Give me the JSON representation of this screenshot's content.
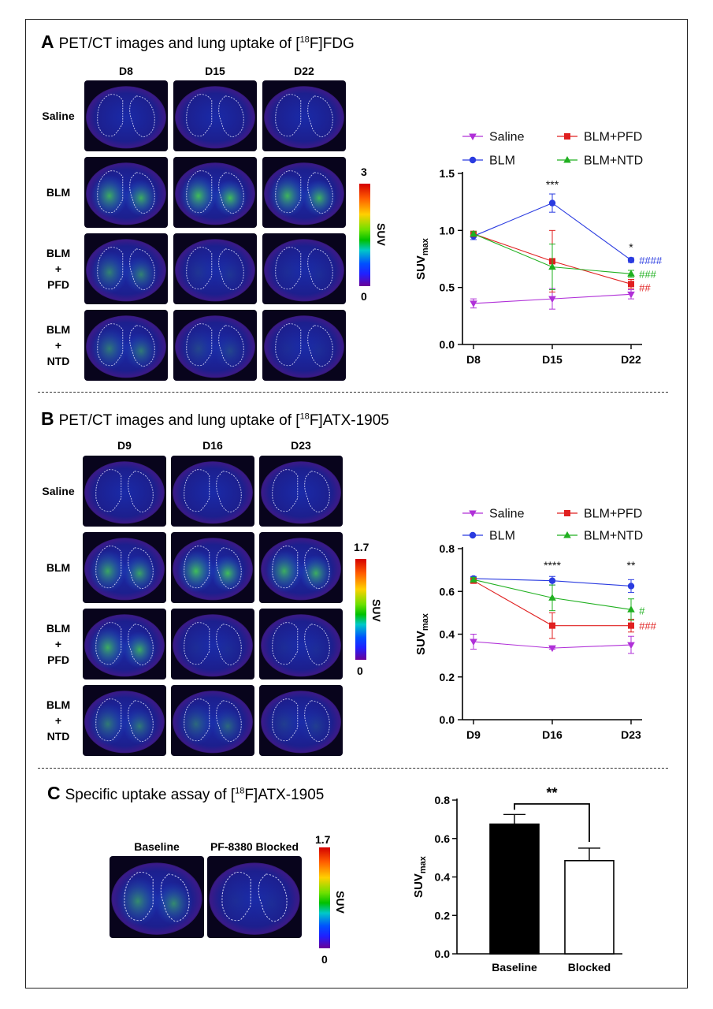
{
  "panel_a": {
    "letter": "A",
    "title_pre": "PET/CT images and lung uptake of [",
    "title_sup": "18",
    "title_post": "F]FDG",
    "columns": [
      "D8",
      "D15",
      "D22"
    ],
    "rows": [
      [
        "Saline"
      ],
      [
        "BLM"
      ],
      [
        "BLM",
        "+",
        "PFD"
      ],
      [
        "BLM",
        "+",
        "NTD"
      ]
    ],
    "colorbar": {
      "max": "3",
      "min": "0",
      "label": "SUV"
    }
  },
  "panel_b": {
    "letter": "B",
    "title_pre": "PET/CT images and lung uptake of [",
    "title_sup": "18",
    "title_post": "F]ATX-1905",
    "columns": [
      "D9",
      "D16",
      "D23"
    ],
    "rows": [
      [
        "Saline"
      ],
      [
        "BLM"
      ],
      [
        "BLM",
        "+",
        "PFD"
      ],
      [
        "BLM",
        "+",
        "NTD"
      ]
    ],
    "colorbar": {
      "max": "1.7",
      "min": "0",
      "label": "SUV"
    }
  },
  "panel_c": {
    "letter": "C",
    "title_pre": "Specific uptake assay of [",
    "title_sup": "18",
    "title_post": "F]ATX-1905",
    "columns": [
      "Baseline",
      "PF-8380 Blocked"
    ],
    "colorbar": {
      "max": "1.7",
      "min": "0",
      "label": "SUV"
    }
  },
  "colors": {
    "saline": "#b030d8",
    "blm": "#2a3be0",
    "blm_pfd": "#e02020",
    "blm_ntd": "#20b020"
  },
  "chart_data": [
    {
      "type": "line",
      "ylabel_main": "SUV",
      "ylabel_sub": "max",
      "x": [
        "D8",
        "D15",
        "D22"
      ],
      "ylim": [
        0,
        1.5
      ],
      "yticks": [
        "0.0",
        "0.5",
        "1.0",
        "1.5"
      ],
      "legend": [
        "Saline",
        "BLM+PFD",
        "BLM",
        "BLM+NTD"
      ],
      "series": [
        {
          "name": "Saline",
          "key": "saline",
          "marker": "tri-down",
          "values": [
            0.36,
            0.4,
            0.44
          ],
          "err": [
            0.04,
            0.09,
            0.04
          ]
        },
        {
          "name": "BLM",
          "key": "blm",
          "marker": "circle",
          "values": [
            0.95,
            1.24,
            0.74
          ],
          "err": [
            0.03,
            0.08,
            0.02
          ]
        },
        {
          "name": "BLM+PFD",
          "key": "blm_pfd",
          "marker": "square",
          "values": [
            0.97,
            0.73,
            0.53
          ],
          "err": [
            0.02,
            0.27,
            0.04
          ]
        },
        {
          "name": "BLM+NTD",
          "key": "blm_ntd",
          "marker": "tri-up",
          "values": [
            0.97,
            0.68,
            0.62
          ],
          "err": [
            0.02,
            0.2,
            0.03
          ]
        }
      ],
      "annotations": [
        {
          "text": "***",
          "x": "D15",
          "y": 1.37,
          "key": "ink"
        },
        {
          "text": "*",
          "x": "D22",
          "y": 0.82,
          "key": "ink"
        },
        {
          "text": "####",
          "x": "D22",
          "y": 0.74,
          "key": "blm",
          "side": "right"
        },
        {
          "text": "###",
          "x": "D22",
          "y": 0.62,
          "key": "blm_ntd",
          "side": "right"
        },
        {
          "text": "##",
          "x": "D22",
          "y": 0.5,
          "key": "blm_pfd",
          "side": "right"
        }
      ]
    },
    {
      "type": "line",
      "ylabel_main": "SUV",
      "ylabel_sub": "max",
      "x": [
        "D9",
        "D16",
        "D23"
      ],
      "ylim": [
        0,
        0.8
      ],
      "yticks": [
        "0.0",
        "0.2",
        "0.4",
        "0.6",
        "0.8"
      ],
      "legend": [
        "Saline",
        "BLM+PFD",
        "BLM",
        "BLM+NTD"
      ],
      "series": [
        {
          "name": "Saline",
          "key": "saline",
          "marker": "tri-down",
          "values": [
            0.365,
            0.335,
            0.35
          ],
          "err": [
            0.035,
            0.005,
            0.04
          ]
        },
        {
          "name": "BLM",
          "key": "blm",
          "marker": "circle",
          "values": [
            0.66,
            0.65,
            0.625
          ],
          "err": [
            0.01,
            0.02,
            0.03
          ]
        },
        {
          "name": "BLM+PFD",
          "key": "blm_pfd",
          "marker": "square",
          "values": [
            0.65,
            0.44,
            0.44
          ],
          "err": [
            0.01,
            0.06,
            0.03
          ]
        },
        {
          "name": "BLM+NTD",
          "key": "blm_ntd",
          "marker": "tri-up",
          "values": [
            0.655,
            0.57,
            0.515
          ],
          "err": [
            0.01,
            0.06,
            0.05
          ]
        }
      ],
      "annotations": [
        {
          "text": "****",
          "x": "D16",
          "y": 0.705,
          "key": "ink"
        },
        {
          "text": "**",
          "x": "D23",
          "y": 0.705,
          "key": "ink"
        },
        {
          "text": "#",
          "x": "D23",
          "y": 0.51,
          "key": "blm_ntd",
          "side": "right"
        },
        {
          "text": "###",
          "x": "D23",
          "y": 0.44,
          "key": "blm_pfd",
          "side": "right"
        }
      ]
    },
    {
      "type": "bar",
      "ylabel_main": "SUV",
      "ylabel_sub": "max",
      "categories": [
        "Baseline",
        "Blocked"
      ],
      "values": [
        0.675,
        0.485
      ],
      "err": [
        0.05,
        0.065
      ],
      "ylim": [
        0,
        0.8
      ],
      "yticks": [
        "0.0",
        "0.2",
        "0.4",
        "0.6",
        "0.8"
      ],
      "significance": "**"
    }
  ]
}
